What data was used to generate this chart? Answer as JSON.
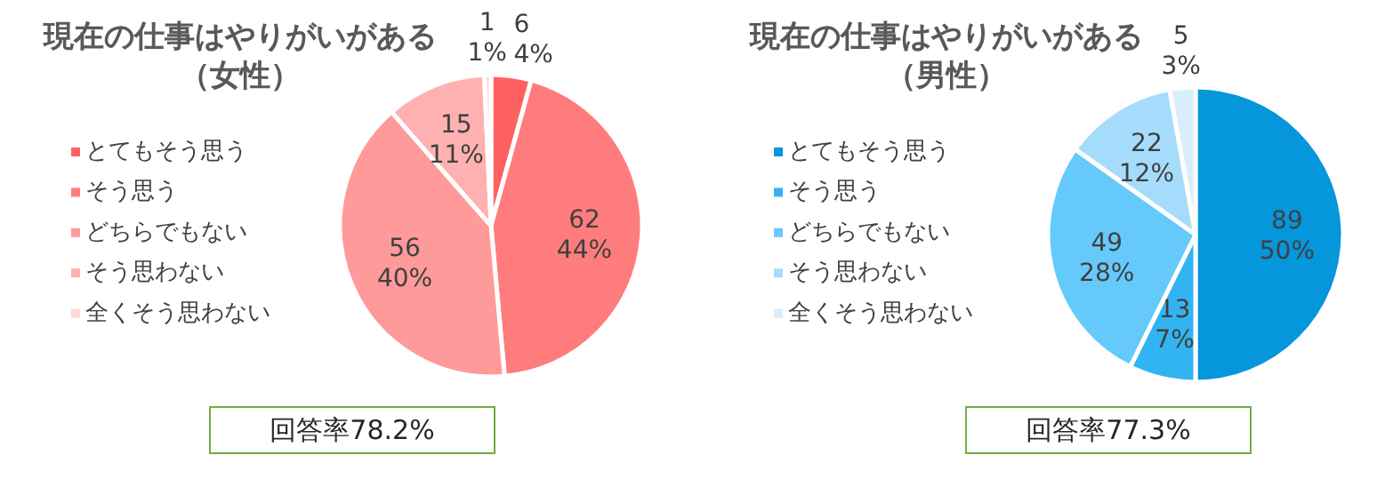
{
  "chart_data": [
    {
      "type": "pie",
      "title": "現在の仕事はやりがいがある",
      "subtitle": "（女性）",
      "legend": "left",
      "categories": [
        "とてもそう思う",
        "そう思う",
        "どちらでもない",
        "そう思わない",
        "全くそう思わない"
      ],
      "values": [
        6,
        62,
        56,
        15,
        1
      ],
      "value_labels": [
        "6\n4%",
        "62\n44%",
        "56\n40%",
        "15\n11%",
        "1\n1%"
      ],
      "colors": [
        "#ff6161",
        "#ff7c7c",
        "#ff9a9a",
        "#ffb0b0",
        "#ffd9d9"
      ],
      "annotations": [
        "回答率78.2%"
      ]
    },
    {
      "type": "pie",
      "title": "現在の仕事はやりがいがある",
      "subtitle": "（男性）",
      "legend": "left",
      "categories": [
        "とてもそう思う",
        "そう思う",
        "どちらでもない",
        "そう思わない",
        "全くそう思わない"
      ],
      "values": [
        89,
        13,
        49,
        22,
        5
      ],
      "value_labels": [
        "89\n50%",
        "13\n7%",
        "49\n28%",
        "22\n12%",
        "5\n3%"
      ],
      "colors": [
        "#0596dc",
        "#33b4f2",
        "#66c9fc",
        "#a6dcfb",
        "#d8eefc"
      ],
      "annotations": [
        "回答率77.3%"
      ]
    }
  ]
}
